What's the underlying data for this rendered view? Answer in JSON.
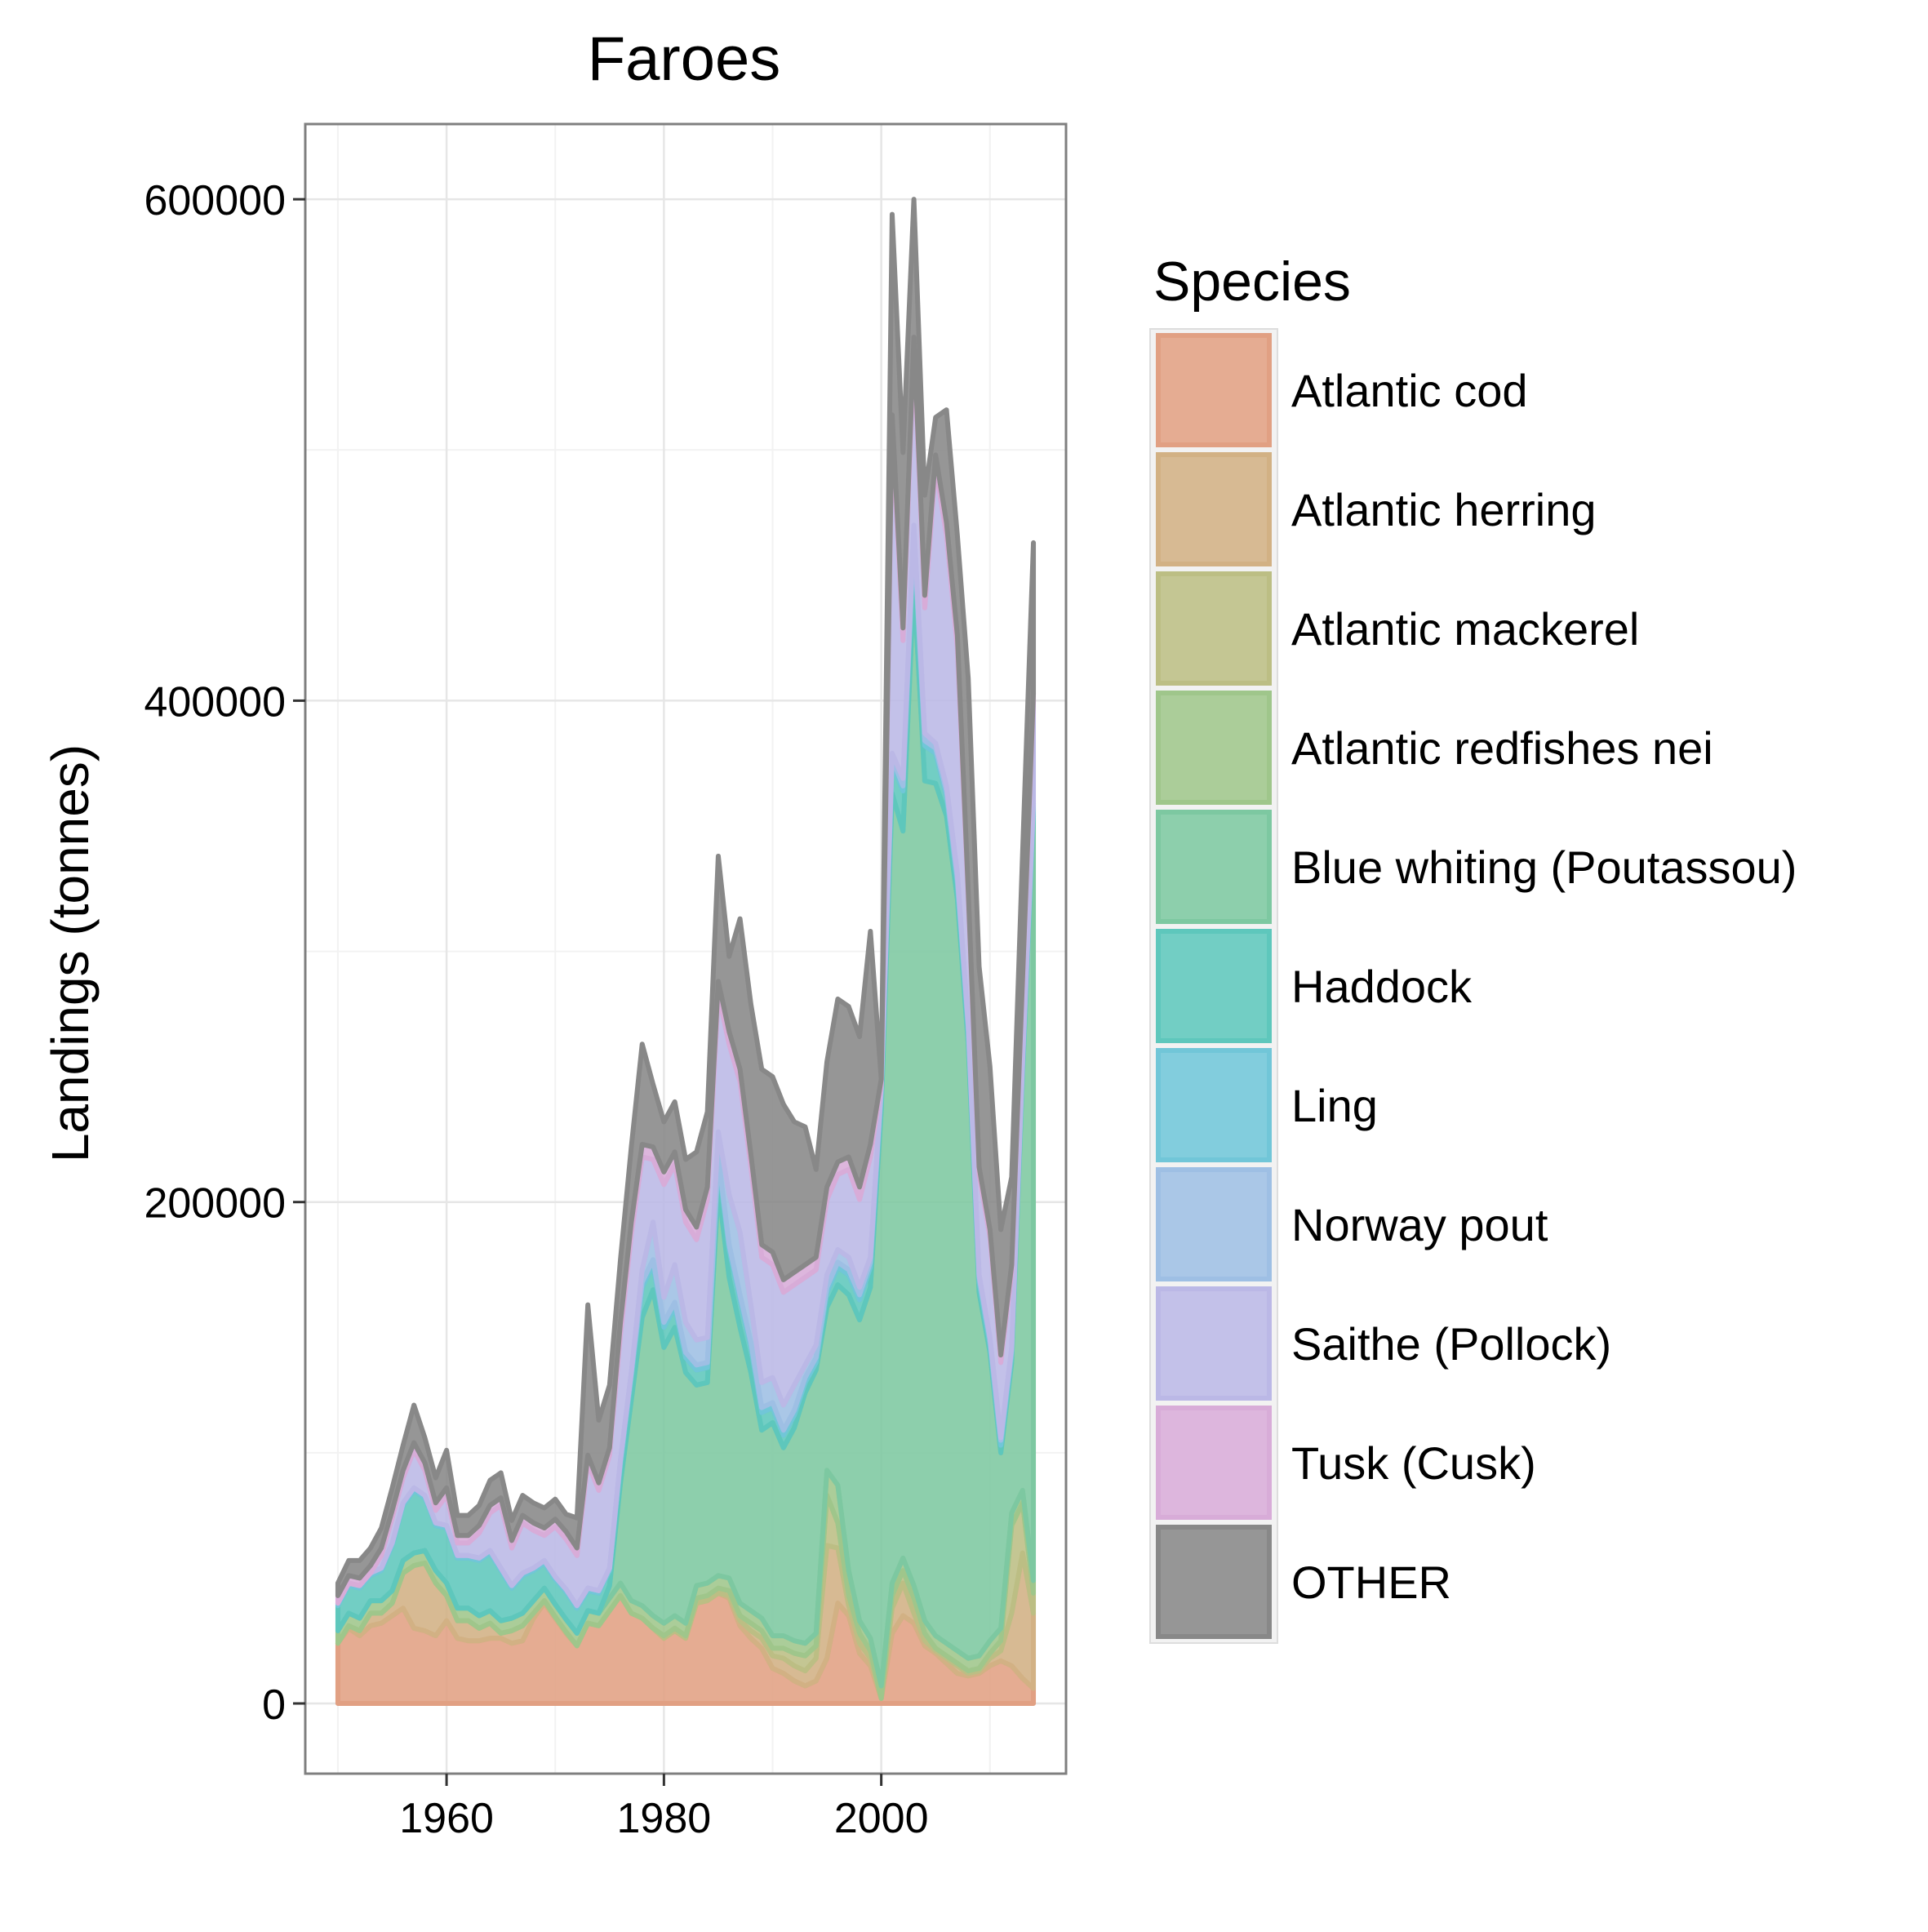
{
  "chart_data": {
    "type": "area",
    "stacked": true,
    "title": "Faroes",
    "xlabel": "",
    "ylabel": "Landings (tonnes)",
    "xlim": [
      1947,
      2017
    ],
    "ylim": [
      -28000,
      630000
    ],
    "x_ticks": [
      1960,
      1980,
      2000
    ],
    "y_ticks": [
      0,
      200000,
      400000,
      600000
    ],
    "y_tick_labels": [
      "0",
      "200000",
      "400000",
      "600000"
    ],
    "x_tick_labels": [
      "1960",
      "1980",
      "2000"
    ],
    "grid": true,
    "legend": {
      "title": "Species",
      "position": "right"
    },
    "x": [
      1950,
      1951,
      1952,
      1953,
      1954,
      1955,
      1956,
      1957,
      1958,
      1959,
      1960,
      1961,
      1962,
      1963,
      1964,
      1965,
      1966,
      1967,
      1968,
      1969,
      1970,
      1971,
      1972,
      1973,
      1974,
      1975,
      1976,
      1977,
      1978,
      1979,
      1980,
      1981,
      1982,
      1983,
      1984,
      1985,
      1986,
      1987,
      1988,
      1989,
      1990,
      1991,
      1992,
      1993,
      1994,
      1995,
      1996,
      1997,
      1998,
      1999,
      2000,
      2001,
      2002,
      2003,
      2004,
      2005,
      2006,
      2007,
      2008,
      2009,
      2010,
      2011,
      2012,
      2013,
      2014
    ],
    "series": [
      {
        "name": "Atlantic cod",
        "color": "#e1a083",
        "values": [
          24000,
          30000,
          27000,
          31000,
          32000,
          35000,
          38000,
          30000,
          29000,
          27000,
          33000,
          26000,
          25000,
          25000,
          26000,
          26000,
          24000,
          25000,
          34000,
          40000,
          34000,
          28000,
          23000,
          32000,
          31000,
          37000,
          43000,
          36000,
          34000,
          30000,
          26000,
          29000,
          26000,
          40000,
          41000,
          44000,
          42000,
          31000,
          26000,
          22000,
          14000,
          12000,
          9000,
          7000,
          9000,
          18000,
          40000,
          35000,
          20000,
          15000,
          2000,
          28000,
          35000,
          32000,
          23000,
          20000,
          16000,
          12000,
          11000,
          12000,
          15000,
          17000,
          15000,
          10000,
          6000
        ]
      },
      {
        "name": "Atlantic herring",
        "color": "#d2b184",
        "values": [
          0,
          1000,
          2000,
          5000,
          4000,
          5000,
          14000,
          25000,
          27000,
          21000,
          10000,
          7000,
          8000,
          5000,
          6000,
          2000,
          5000,
          6000,
          2000,
          1000,
          500,
          500,
          0,
          0,
          0,
          0,
          0,
          0,
          0,
          0,
          0,
          0,
          0,
          0,
          0,
          0,
          1000,
          2000,
          3000,
          4000,
          5000,
          6000,
          6000,
          6000,
          9000,
          45000,
          22000,
          4000,
          4000,
          3000,
          0,
          10000,
          13000,
          4000,
          2000,
          1000,
          2000,
          3000,
          1000,
          1000,
          3000,
          4000,
          21000,
          50000,
          30000
        ]
      },
      {
        "name": "Atlantic mackerel",
        "color": "#bcbe84",
        "values": [
          0,
          0,
          0,
          0,
          0,
          0,
          0,
          0,
          0,
          0,
          0,
          0,
          0,
          0,
          0,
          0,
          0,
          0,
          0,
          0,
          0,
          0,
          0,
          0,
          0,
          0,
          0,
          0,
          0,
          0,
          1000,
          1000,
          1000,
          2000,
          2000,
          2000,
          2000,
          2000,
          3000,
          3000,
          3000,
          4000,
          5000,
          6000,
          5000,
          20000,
          10000,
          4000,
          4000,
          3000,
          0,
          5000,
          5000,
          6000,
          3000,
          1000,
          1000,
          1000,
          1000,
          1000,
          2000,
          4000,
          35000,
          20000,
          8000
        ]
      },
      {
        "name": "Atlantic redfishes nei",
        "color": "#9fc68b",
        "values": [
          5000,
          5000,
          5000,
          5000,
          5000,
          5000,
          5000,
          5000,
          5000,
          5000,
          5000,
          5000,
          5000,
          5000,
          5000,
          5000,
          5000,
          5000,
          5000,
          5000,
          5000,
          5000,
          5000,
          5000,
          5000,
          5000,
          5000,
          5000,
          5000,
          5000,
          5000,
          5000,
          5000,
          5000,
          5000,
          5000,
          5000,
          5000,
          5000,
          5000,
          5000,
          5000,
          5000,
          5000,
          5000,
          10000,
          15000,
          10000,
          5000,
          5000,
          5000,
          5000,
          5000,
          5000,
          5000,
          5000,
          5000,
          5000,
          5000,
          5000,
          5000,
          5000,
          5000,
          5000,
          5000
        ]
      },
      {
        "name": "Blue whiting (Poutassou)",
        "color": "#7dc8a1",
        "values": [
          0,
          0,
          0,
          0,
          0,
          0,
          0,
          0,
          0,
          0,
          0,
          0,
          0,
          0,
          0,
          0,
          0,
          0,
          0,
          0,
          0,
          0,
          0,
          0,
          0,
          5000,
          40000,
          80000,
          115000,
          130000,
          110000,
          115000,
          100000,
          80000,
          80000,
          155000,
          120000,
          110000,
          95000,
          75000,
          85000,
          75000,
          85000,
          100000,
          105000,
          65000,
          80000,
          110000,
          120000,
          140000,
          230000,
          315000,
          290000,
          400000,
          335000,
          340000,
          330000,
          300000,
          245000,
          145000,
          115000,
          70000,
          60000,
          165000,
          305000
        ]
      },
      {
        "name": "Haddock",
        "color": "#5ec7bc",
        "values": [
          10000,
          11000,
          12000,
          10000,
          12000,
          18000,
          22000,
          25000,
          21000,
          18000,
          22000,
          20000,
          20000,
          22000,
          23000,
          20000,
          12000,
          15000,
          12000,
          10000,
          10000,
          11000,
          10000,
          8000,
          8000,
          6000,
          7000,
          9000,
          12000,
          10000,
          8000,
          8000,
          6000,
          6000,
          6000,
          10000,
          11000,
          11000,
          10000,
          7000,
          6000,
          5000,
          5000,
          4000,
          3000,
          6000,
          7000,
          8000,
          8000,
          8000,
          6000,
          12000,
          16000,
          18000,
          14000,
          12000,
          8000,
          6000,
          5000,
          4000,
          3000,
          3000,
          3000,
          3000,
          3000
        ]
      },
      {
        "name": "Ling",
        "color": "#71c6d8",
        "values": [
          1000,
          1000,
          1000,
          1000,
          1000,
          1000,
          1000,
          1000,
          1000,
          1000,
          1000,
          1000,
          1000,
          1000,
          1000,
          1000,
          1000,
          1000,
          1000,
          1000,
          1000,
          1000,
          1000,
          1000,
          1000,
          1000,
          2000,
          2000,
          2000,
          2000,
          2000,
          2000,
          2000,
          2000,
          2000,
          2000,
          2000,
          2000,
          2000,
          2000,
          2000,
          2000,
          2000,
          2000,
          2000,
          2000,
          2000,
          2000,
          2000,
          2000,
          2000,
          2000,
          2000,
          2000,
          2000,
          2000,
          2000,
          2000,
          2000,
          2000,
          2000,
          2000,
          2000,
          2000,
          2000
        ]
      },
      {
        "name": "Norway pout",
        "color": "#9ebfe4",
        "values": [
          0,
          0,
          0,
          0,
          0,
          0,
          0,
          0,
          0,
          0,
          0,
          0,
          0,
          0,
          0,
          0,
          0,
          0,
          0,
          0,
          0,
          0,
          0,
          0,
          0,
          0,
          0,
          0,
          5000,
          15000,
          10000,
          15000,
          12000,
          10000,
          10000,
          10000,
          20000,
          25000,
          15000,
          10000,
          10000,
          10000,
          10000,
          5000,
          5000,
          5000,
          5000,
          5000,
          3000,
          2000,
          1000,
          2000,
          3000,
          3000,
          3000,
          2000,
          2000,
          2000,
          1000,
          1000,
          1000,
          1000,
          1000,
          1000,
          1000
        ]
      },
      {
        "name": "Saithe (Pollock)",
        "color": "#bbb8e6",
        "values": [
          0,
          0,
          0,
          0,
          5000,
          10000,
          10000,
          15000,
          10000,
          5000,
          12000,
          5000,
          5000,
          10000,
          15000,
          25000,
          15000,
          20000,
          15000,
          10000,
          20000,
          20000,
          20000,
          50000,
          40000,
          45000,
          50000,
          55000,
          45000,
          25000,
          45000,
          40000,
          40000,
          40000,
          55000,
          55000,
          60000,
          60000,
          55000,
          50000,
          45000,
          45000,
          40000,
          35000,
          30000,
          30000,
          30000,
          35000,
          35000,
          40000,
          1000,
          130000,
          55000,
          70000,
          50000,
          110000,
          100000,
          90000,
          50000,
          40000,
          40000,
          30000,
          30000,
          30000,
          40000
        ]
      },
      {
        "name": "Tusk (Cusk)",
        "color": "#d8acd8",
        "values": [
          3000,
          3000,
          3000,
          3000,
          3000,
          3000,
          3000,
          3000,
          3000,
          3000,
          3000,
          3000,
          3000,
          3000,
          3000,
          3000,
          3000,
          3000,
          3000,
          3000,
          3000,
          3000,
          3000,
          3000,
          3000,
          3000,
          5000,
          5000,
          5000,
          5000,
          5000,
          5000,
          5000,
          5000,
          5000,
          5000,
          5000,
          5000,
          5000,
          5000,
          5000,
          5000,
          5000,
          5000,
          5000,
          5000,
          5000,
          5000,
          5000,
          5000,
          2000,
          5000,
          5000,
          5000,
          5000,
          5000,
          5000,
          5000,
          3000,
          3000,
          3000,
          3000,
          3000,
          3000,
          3000
        ]
      },
      {
        "name": "OTHER",
        "color": "#888888",
        "values": [
          5000,
          6000,
          7000,
          7000,
          8000,
          9000,
          10000,
          15000,
          10000,
          10000,
          15000,
          8000,
          8000,
          8000,
          10000,
          10000,
          8000,
          8000,
          8000,
          8000,
          8000,
          7000,
          12000,
          60000,
          25000,
          25000,
          25000,
          30000,
          40000,
          25000,
          20000,
          20000,
          20000,
          30000,
          30000,
          50000,
          30000,
          60000,
          60000,
          70000,
          70000,
          70000,
          60000,
          55000,
          35000,
          50000,
          65000,
          60000,
          60000,
          85000,
          0,
          80000,
          70000,
          55000,
          40000,
          15000,
          45000,
          40000,
          85000,
          80000,
          65000,
          50000,
          35000,
          50000,
          60000
        ]
      }
    ]
  }
}
